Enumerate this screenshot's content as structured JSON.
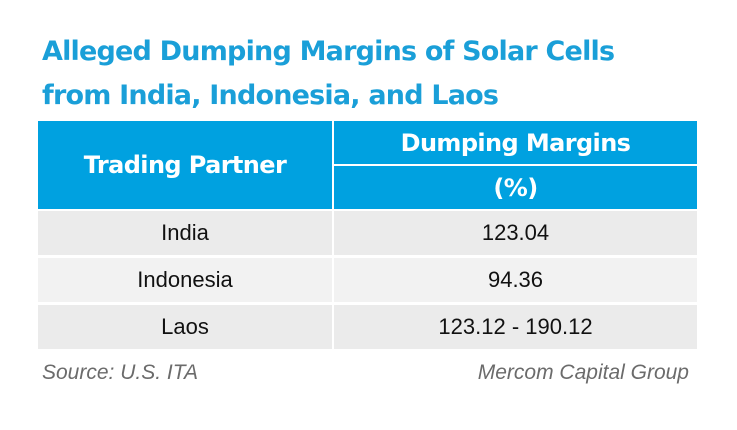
{
  "title": {
    "line1": "Alleged Dumping Margins of Solar Cells",
    "line2": "from India, Indonesia, and Laos"
  },
  "table": {
    "header": {
      "partner": "Trading Partner",
      "margin": "Dumping Margins",
      "unit": "(%)"
    },
    "rows": [
      {
        "partner": "India",
        "margin": "123.04"
      },
      {
        "partner": "Indonesia",
        "margin": "94.36"
      },
      {
        "partner": "Laos",
        "margin": "123.12 - 190.12"
      }
    ]
  },
  "footer": {
    "source": "Source: U.S. ITA",
    "credit": "Mercom Capital Group"
  },
  "colors": {
    "title": "#1a9fd8",
    "header_bg": "#00a1e0",
    "row_bg": "#ebebeb",
    "footer_text": "#6b6b6b"
  }
}
